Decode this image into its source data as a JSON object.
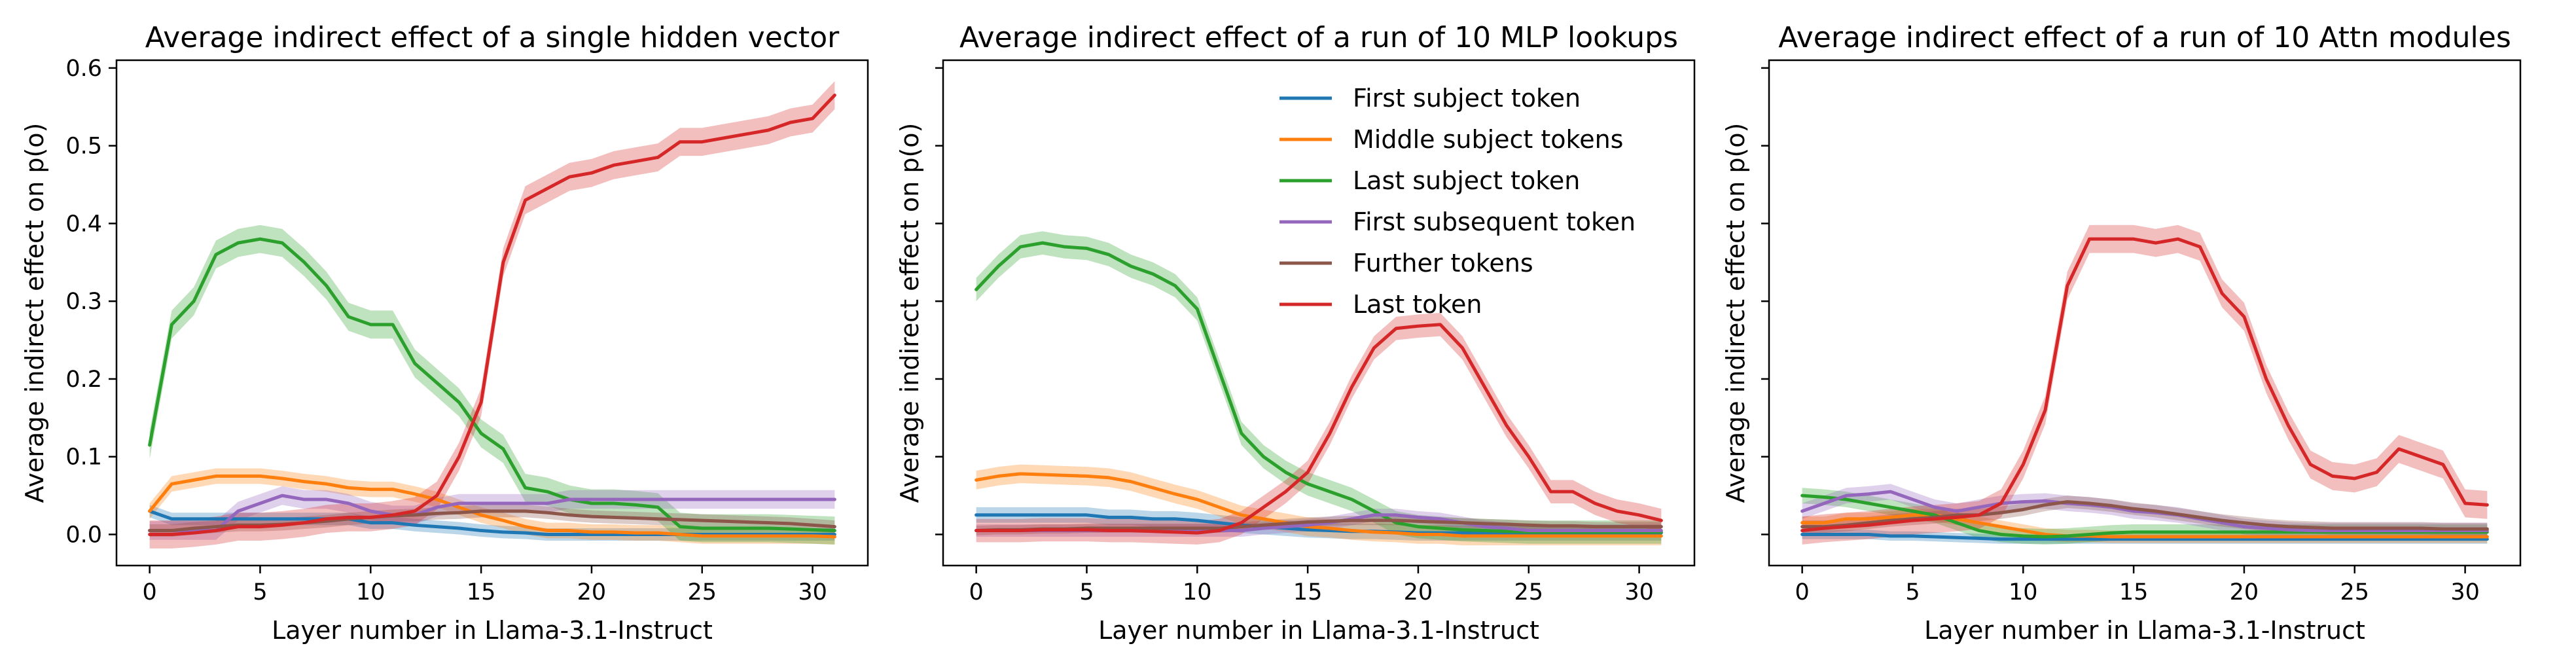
{
  "figure": {
    "xlabel": "Layer number in Llama-3.1-Instruct",
    "ylabel": "Average indirect effect on p(o)"
  },
  "legend": [
    {
      "label": "First subject token",
      "color": "#1f77b4"
    },
    {
      "label": "Middle subject tokens",
      "color": "#ff7f0e"
    },
    {
      "label": "Last subject token",
      "color": "#2ca02c"
    },
    {
      "label": "First subsequent token",
      "color": "#9467bd"
    },
    {
      "label": "Further tokens",
      "color": "#8c564b"
    },
    {
      "label": "Last token",
      "color": "#d62728"
    }
  ],
  "chart_data": [
    {
      "type": "line",
      "title": "Average indirect effect of a single hidden vector",
      "xlabel": "Layer number in Llama-3.1-Instruct",
      "ylabel": "Average indirect effect on p(o)",
      "xlim": [
        -1.5,
        32.5
      ],
      "ylim": [
        -0.04,
        0.61
      ],
      "xticks": [
        0,
        5,
        10,
        15,
        20,
        25,
        30
      ],
      "yticks": [
        0.0,
        0.1,
        0.2,
        0.3,
        0.4,
        0.5,
        0.6
      ],
      "ytick_labels": [
        "0.0",
        "0.1",
        "0.2",
        "0.3",
        "0.4",
        "0.5",
        "0.6"
      ],
      "grid": false,
      "x": [
        0,
        1,
        2,
        3,
        4,
        5,
        6,
        7,
        8,
        9,
        10,
        11,
        12,
        13,
        14,
        15,
        16,
        17,
        18,
        19,
        20,
        21,
        22,
        23,
        24,
        25,
        26,
        27,
        28,
        29,
        30,
        31
      ],
      "series": [
        {
          "name": "First subject token",
          "color": "#1f77b4",
          "band": 0.008,
          "values": [
            0.03,
            0.02,
            0.02,
            0.02,
            0.02,
            0.02,
            0.02,
            0.02,
            0.02,
            0.02,
            0.015,
            0.015,
            0.012,
            0.01,
            0.008,
            0.005,
            0.003,
            0.002,
            0.0,
            0.0,
            0.0,
            0.0,
            0.0,
            0.0,
            0.0,
            0.0,
            0.0,
            0.0,
            0.0,
            0.0,
            0.0,
            0.0
          ]
        },
        {
          "name": "Middle subject tokens",
          "color": "#ff7f0e",
          "band": 0.01,
          "values": [
            0.03,
            0.065,
            0.07,
            0.075,
            0.075,
            0.075,
            0.072,
            0.068,
            0.065,
            0.06,
            0.058,
            0.058,
            0.052,
            0.045,
            0.035,
            0.025,
            0.018,
            0.01,
            0.005,
            0.005,
            0.003,
            0.003,
            0.002,
            0.002,
            0.0,
            -0.002,
            -0.002,
            -0.002,
            -0.002,
            -0.002,
            -0.002,
            -0.003
          ]
        },
        {
          "name": "Last subject token",
          "color": "#2ca02c",
          "band": 0.018,
          "values": [
            0.115,
            0.27,
            0.3,
            0.36,
            0.375,
            0.38,
            0.375,
            0.35,
            0.32,
            0.28,
            0.27,
            0.27,
            0.22,
            0.195,
            0.17,
            0.13,
            0.11,
            0.06,
            0.055,
            0.045,
            0.04,
            0.04,
            0.038,
            0.035,
            0.01,
            0.008,
            0.008,
            0.008,
            0.008,
            0.007,
            0.006,
            0.005
          ]
        },
        {
          "name": "First subsequent token",
          "color": "#9467bd",
          "band": 0.012,
          "values": [
            0.005,
            0.005,
            0.005,
            0.005,
            0.03,
            0.04,
            0.05,
            0.045,
            0.045,
            0.04,
            0.03,
            0.025,
            0.025,
            0.035,
            0.04,
            0.04,
            0.04,
            0.04,
            0.04,
            0.045,
            0.045,
            0.045,
            0.045,
            0.045,
            0.045,
            0.045,
            0.045,
            0.045,
            0.045,
            0.045,
            0.045,
            0.045
          ]
        },
        {
          "name": "Further tokens",
          "color": "#8c564b",
          "band": 0.008,
          "values": [
            0.005,
            0.005,
            0.008,
            0.01,
            0.012,
            0.012,
            0.013,
            0.015,
            0.017,
            0.02,
            0.022,
            0.024,
            0.025,
            0.027,
            0.028,
            0.03,
            0.03,
            0.03,
            0.028,
            0.025,
            0.023,
            0.022,
            0.021,
            0.02,
            0.019,
            0.018,
            0.017,
            0.016,
            0.015,
            0.014,
            0.012,
            0.01
          ]
        },
        {
          "name": "Last token",
          "color": "#d62728",
          "band": 0.018,
          "values": [
            0.0,
            0.0,
            0.002,
            0.005,
            0.01,
            0.01,
            0.012,
            0.015,
            0.02,
            0.022,
            0.022,
            0.025,
            0.03,
            0.05,
            0.1,
            0.17,
            0.35,
            0.43,
            0.445,
            0.46,
            0.465,
            0.475,
            0.48,
            0.485,
            0.505,
            0.505,
            0.51,
            0.515,
            0.52,
            0.53,
            0.535,
            0.565
          ]
        }
      ]
    },
    {
      "type": "line",
      "title": "Average indirect effect of a run of 10 MLP lookups",
      "xlabel": "Layer number in Llama-3.1-Instruct",
      "ylabel": "Average indirect effect on p(o)",
      "xlim": [
        -1.5,
        32.5
      ],
      "ylim": [
        -0.04,
        0.61
      ],
      "xticks": [
        0,
        5,
        10,
        15,
        20,
        25,
        30
      ],
      "yticks": [
        0.0,
        0.1,
        0.2,
        0.3,
        0.4,
        0.5,
        0.6
      ],
      "grid": false,
      "legend_position": "upper center",
      "x": [
        0,
        1,
        2,
        3,
        4,
        5,
        6,
        7,
        8,
        9,
        10,
        11,
        12,
        13,
        14,
        15,
        16,
        17,
        18,
        19,
        20,
        21,
        22,
        23,
        24,
        25,
        26,
        27,
        28,
        29,
        30,
        31
      ],
      "series": [
        {
          "name": "First subject token",
          "color": "#1f77b4",
          "band": 0.01,
          "values": [
            0.025,
            0.025,
            0.025,
            0.025,
            0.025,
            0.025,
            0.022,
            0.022,
            0.02,
            0.02,
            0.018,
            0.015,
            0.012,
            0.01,
            0.008,
            0.006,
            0.005,
            0.004,
            0.004,
            0.003,
            0.002,
            0.002,
            0.002,
            0.002,
            0.002,
            0.002,
            0.002,
            0.002,
            0.002,
            0.002,
            0.002,
            0.002
          ]
        },
        {
          "name": "Middle subject tokens",
          "color": "#ff7f0e",
          "band": 0.012,
          "values": [
            0.07,
            0.075,
            0.078,
            0.077,
            0.076,
            0.075,
            0.073,
            0.068,
            0.06,
            0.052,
            0.045,
            0.035,
            0.025,
            0.02,
            0.015,
            0.01,
            0.008,
            0.005,
            0.003,
            0.002,
            0.0,
            0.0,
            -0.002,
            -0.002,
            -0.002,
            -0.002,
            -0.002,
            -0.002,
            -0.002,
            -0.002,
            -0.002,
            -0.002
          ]
        },
        {
          "name": "Last subject token",
          "color": "#2ca02c",
          "band": 0.015,
          "values": [
            0.315,
            0.345,
            0.37,
            0.375,
            0.37,
            0.368,
            0.36,
            0.345,
            0.335,
            0.32,
            0.29,
            0.21,
            0.13,
            0.1,
            0.08,
            0.065,
            0.055,
            0.045,
            0.03,
            0.015,
            0.01,
            0.008,
            0.006,
            0.005,
            0.004,
            0.003,
            0.003,
            0.003,
            0.003,
            0.003,
            0.003,
            0.003
          ]
        },
        {
          "name": "First subsequent token",
          "color": "#9467bd",
          "band": 0.008,
          "values": [
            0.005,
            0.005,
            0.005,
            0.005,
            0.005,
            0.005,
            0.005,
            0.005,
            0.005,
            0.005,
            0.005,
            0.005,
            0.005,
            0.008,
            0.01,
            0.012,
            0.015,
            0.02,
            0.025,
            0.025,
            0.022,
            0.02,
            0.015,
            0.01,
            0.008,
            0.005,
            0.005,
            0.005,
            0.005,
            0.005,
            0.005,
            0.005
          ]
        },
        {
          "name": "Further tokens",
          "color": "#8c564b",
          "band": 0.006,
          "values": [
            0.005,
            0.006,
            0.006,
            0.007,
            0.007,
            0.008,
            0.008,
            0.008,
            0.008,
            0.008,
            0.008,
            0.008,
            0.01,
            0.012,
            0.014,
            0.016,
            0.017,
            0.018,
            0.018,
            0.018,
            0.017,
            0.016,
            0.015,
            0.014,
            0.013,
            0.012,
            0.011,
            0.011,
            0.01,
            0.01,
            0.01,
            0.01
          ]
        },
        {
          "name": "Last token",
          "color": "#d62728",
          "band": 0.015,
          "values": [
            0.005,
            0.005,
            0.005,
            0.006,
            0.006,
            0.006,
            0.005,
            0.005,
            0.004,
            0.003,
            0.002,
            0.005,
            0.015,
            0.035,
            0.055,
            0.08,
            0.13,
            0.19,
            0.24,
            0.265,
            0.268,
            0.27,
            0.24,
            0.19,
            0.14,
            0.1,
            0.055,
            0.055,
            0.04,
            0.03,
            0.025,
            0.018
          ]
        }
      ]
    },
    {
      "type": "line",
      "title": "Average indirect effect of a run of 10 Attn modules",
      "xlabel": "Layer number in Llama-3.1-Instruct",
      "ylabel": "Average indirect effect on p(o)",
      "xlim": [
        -1.5,
        32.5
      ],
      "ylim": [
        -0.04,
        0.61
      ],
      "xticks": [
        0,
        5,
        10,
        15,
        20,
        25,
        30
      ],
      "yticks": [
        0.0,
        0.1,
        0.2,
        0.3,
        0.4,
        0.5,
        0.6
      ],
      "grid": false,
      "x": [
        0,
        1,
        2,
        3,
        4,
        5,
        6,
        7,
        8,
        9,
        10,
        11,
        12,
        13,
        14,
        15,
        16,
        17,
        18,
        19,
        20,
        21,
        22,
        23,
        24,
        25,
        26,
        27,
        28,
        29,
        30,
        31
      ],
      "series": [
        {
          "name": "First subject token",
          "color": "#1f77b4",
          "band": 0.006,
          "values": [
            0.0,
            0.0,
            0.0,
            0.0,
            -0.002,
            -0.002,
            -0.003,
            -0.004,
            -0.005,
            -0.006,
            -0.006,
            -0.006,
            -0.006,
            -0.006,
            -0.006,
            -0.006,
            -0.006,
            -0.006,
            -0.006,
            -0.006,
            -0.006,
            -0.006,
            -0.006,
            -0.006,
            -0.006,
            -0.006,
            -0.006,
            -0.006,
            -0.006,
            -0.006,
            -0.006,
            -0.006
          ]
        },
        {
          "name": "Middle subject tokens",
          "color": "#ff7f0e",
          "band": 0.008,
          "values": [
            0.015,
            0.015,
            0.02,
            0.02,
            0.022,
            0.025,
            0.025,
            0.02,
            0.015,
            0.01,
            0.005,
            0.0,
            -0.002,
            -0.002,
            -0.003,
            -0.003,
            -0.003,
            -0.003,
            -0.003,
            -0.003,
            -0.003,
            -0.003,
            -0.003,
            -0.003,
            -0.003,
            -0.003,
            -0.003,
            -0.003,
            -0.003,
            -0.003,
            -0.003,
            -0.003
          ]
        },
        {
          "name": "Last subject token",
          "color": "#2ca02c",
          "band": 0.01,
          "values": [
            0.05,
            0.048,
            0.045,
            0.04,
            0.035,
            0.03,
            0.025,
            0.015,
            0.005,
            0.0,
            -0.002,
            -0.003,
            -0.002,
            0.0,
            0.002,
            0.003,
            0.003,
            0.003,
            0.003,
            0.003,
            0.003,
            0.003,
            0.003,
            0.003,
            0.003,
            0.003,
            0.003,
            0.003,
            0.003,
            0.003,
            0.003,
            0.003
          ]
        },
        {
          "name": "First subsequent token",
          "color": "#9467bd",
          "band": 0.01,
          "values": [
            0.03,
            0.04,
            0.05,
            0.052,
            0.055,
            0.045,
            0.035,
            0.03,
            0.035,
            0.04,
            0.042,
            0.043,
            0.04,
            0.038,
            0.035,
            0.03,
            0.028,
            0.025,
            0.02,
            0.015,
            0.01,
            0.008,
            0.006,
            0.005,
            0.005,
            0.005,
            0.005,
            0.005,
            0.005,
            0.005,
            0.005,
            0.005
          ]
        },
        {
          "name": "Further tokens",
          "color": "#8c564b",
          "band": 0.008,
          "values": [
            0.01,
            0.01,
            0.012,
            0.015,
            0.018,
            0.02,
            0.022,
            0.025,
            0.025,
            0.028,
            0.032,
            0.038,
            0.042,
            0.04,
            0.037,
            0.033,
            0.03,
            0.026,
            0.022,
            0.018,
            0.015,
            0.012,
            0.01,
            0.009,
            0.008,
            0.008,
            0.008,
            0.008,
            0.008,
            0.007,
            0.007,
            0.007
          ]
        },
        {
          "name": "Last token",
          "color": "#d62728",
          "band": 0.018,
          "values": [
            0.005,
            0.008,
            0.01,
            0.012,
            0.015,
            0.018,
            0.02,
            0.022,
            0.025,
            0.04,
            0.09,
            0.16,
            0.32,
            0.38,
            0.38,
            0.38,
            0.375,
            0.38,
            0.37,
            0.31,
            0.28,
            0.2,
            0.14,
            0.09,
            0.075,
            0.072,
            0.08,
            0.11,
            0.1,
            0.09,
            0.04,
            0.038
          ]
        }
      ]
    }
  ]
}
